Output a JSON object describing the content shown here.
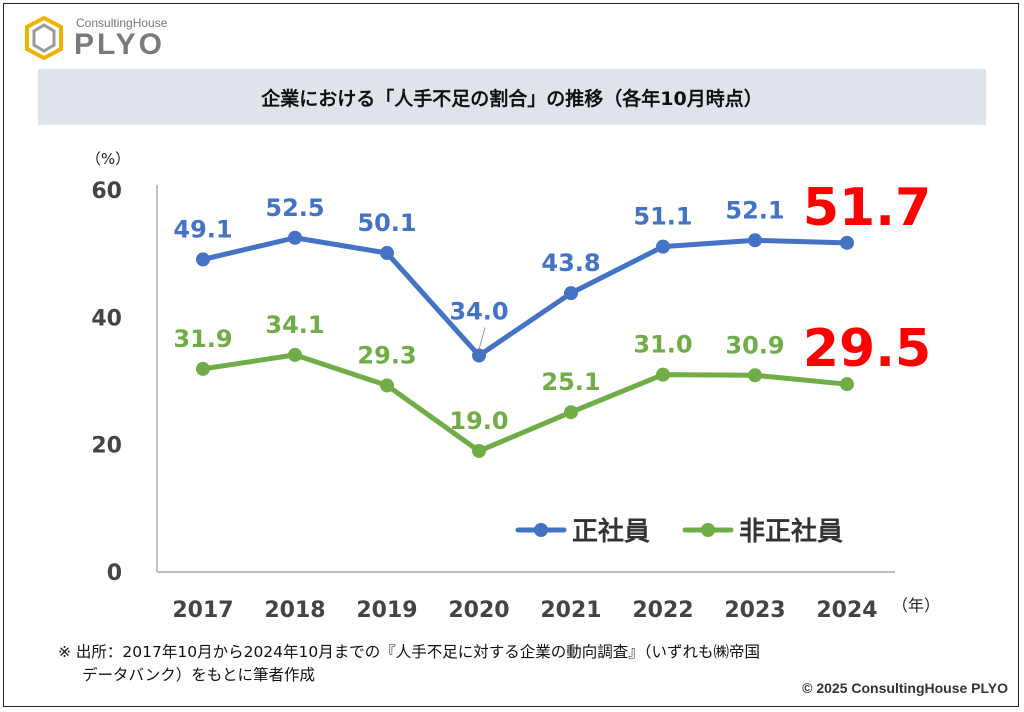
{
  "logo": {
    "small_text": "ConsultingHouse",
    "big_text": "PLYO"
  },
  "title": "企業における「人手不足の割合」の推移（各年10月時点）",
  "chart_data": {
    "type": "line",
    "categories": [
      "2017",
      "2018",
      "2019",
      "2020",
      "2021",
      "2022",
      "2023",
      "2024"
    ],
    "series": [
      {
        "name": "正社員",
        "color": "#4472c4",
        "values": [
          49.1,
          52.5,
          50.1,
          34.0,
          43.8,
          51.1,
          52.1,
          51.7
        ],
        "labels": [
          "49.1",
          "52.5",
          "50.1",
          "34.0",
          "43.8",
          "51.1",
          "52.1",
          "51.7"
        ]
      },
      {
        "name": "非正社員",
        "color": "#70ad47",
        "values": [
          31.9,
          34.1,
          29.3,
          19.0,
          25.1,
          31.0,
          30.9,
          29.5
        ],
        "labels": [
          "31.9",
          "34.1",
          "29.3",
          "19.0",
          "25.1",
          "31.0",
          "30.9",
          "29.5"
        ]
      }
    ],
    "highlight_color": "#ff0000",
    "ylim": [
      0,
      60
    ],
    "yticks": [
      "0",
      "20",
      "40",
      "60"
    ],
    "ylabel": "（%）",
    "xlabel": "（年）",
    "grid": false,
    "legend_position": "bottom-right"
  },
  "note": {
    "line1": "※ 出所：2017年10月から2024年10月までの『人手不足に対する企業の動向調査』（いずれも㈱帝国",
    "line2": "データバンク）をもとに筆者作成"
  },
  "copyright": "© 2025 ConsultingHouse PLYO"
}
